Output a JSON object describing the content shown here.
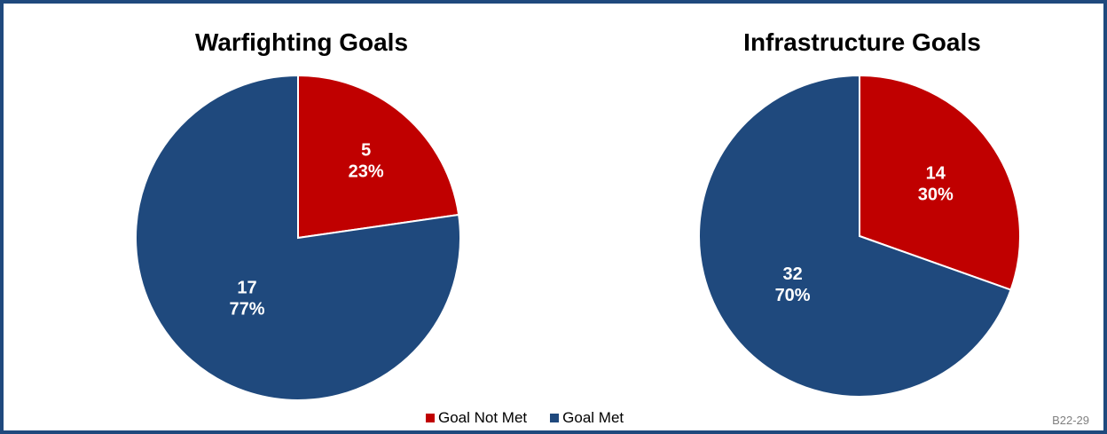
{
  "colors": {
    "frame": "#1f497d",
    "goal_not_met": "#c00000",
    "goal_met": "#1f497d"
  },
  "chart_data": [
    {
      "type": "pie",
      "title": "Warfighting Goals",
      "slices": [
        {
          "name": "Goal Not Met",
          "value": 5,
          "percent_label": "23%",
          "color": "#c00000"
        },
        {
          "name": "Goal Met",
          "value": 17,
          "percent_label": "77%",
          "color": "#1f497d"
        }
      ]
    },
    {
      "type": "pie",
      "title": "Infrastructure Goals",
      "slices": [
        {
          "name": "Goal Not Met",
          "value": 14,
          "percent_label": "30%",
          "color": "#c00000"
        },
        {
          "name": "Goal Met",
          "value": 32,
          "percent_label": "70%",
          "color": "#1f497d"
        }
      ]
    }
  ],
  "legend": {
    "items": [
      {
        "label": "Goal Not Met",
        "color": "#c00000"
      },
      {
        "label": "Goal Met",
        "color": "#1f497d"
      }
    ]
  },
  "footer": {
    "code": "B22-29"
  }
}
